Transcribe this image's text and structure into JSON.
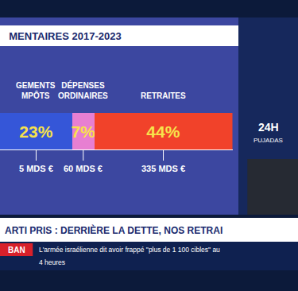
{
  "chart_data": {
    "type": "bar",
    "title": "MENTAIRES 2017-2023",
    "orientation": "horizontal",
    "stacked": true,
    "data_labels": true,
    "tick_labels": false,
    "grid": false,
    "xlim": [
      0,
      74
    ],
    "xticks": [],
    "series": [
      {
        "name": "GEMENTS\nMPÔTS",
        "color": "#3556d8",
        "values": [
          23
        ],
        "value_labels": [
          "23%"
        ],
        "amount_label": "5 MDS €"
      },
      {
        "name": "DÉPENSES\nORDINAIRES",
        "color": "#e77fd2",
        "values": [
          7
        ],
        "value_labels": [
          "7%"
        ],
        "amount_label": "60 MDS €"
      },
      {
        "name": "RETRAITES",
        "color": "#f1422a",
        "values": [
          44
        ],
        "value_labels": [
          "44%"
        ],
        "amount_label": "335 MDS €"
      }
    ]
  },
  "channel": {
    "logo": "24H",
    "show": "PUJADAS"
  },
  "banner": {
    "headline": "ARTI PRIS : DERRIÈRE LA DETTE, NOS RETRAI",
    "ticker_tag": "BAN",
    "ticker": "L'armée israélienne dit avoir frappé \"plus de 1 100 cibles\" au",
    "ticker_line2": "4 heures"
  }
}
